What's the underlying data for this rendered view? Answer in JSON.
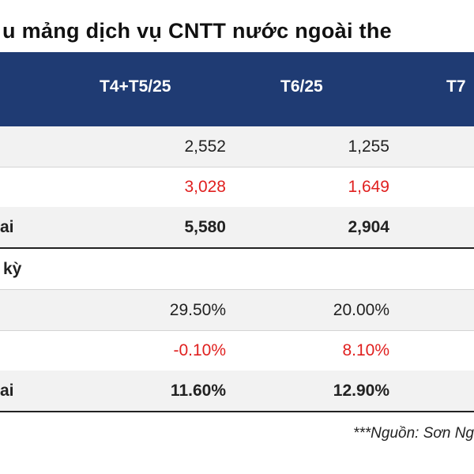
{
  "title": "u mảng dịch vụ CNTT nước ngoài the",
  "columns": [
    "T4+T5/25",
    "T6/25",
    "T7"
  ],
  "rows": [
    {
      "label": "",
      "v1": "2,552",
      "v2": "1,255",
      "style": "normal"
    },
    {
      "label": "",
      "v1": "3,028",
      "v2": "1,649",
      "style": "red"
    },
    {
      "label": "ai",
      "v1": "5,580",
      "v2": "2,904",
      "style": "bold"
    },
    {
      "label": "kỳ",
      "v1": "",
      "v2": "",
      "style": "section"
    },
    {
      "label": "",
      "v1": "29.50%",
      "v2": "20.00%",
      "style": "normal"
    },
    {
      "label": "",
      "v1": "-0.10%",
      "v2": "8.10%",
      "style": "red"
    },
    {
      "label": "ai",
      "v1": "11.60%",
      "v2": "12.90%",
      "style": "bold"
    }
  ],
  "source": "***Nguồn: Sơn Ng",
  "colors": {
    "header_bg": "#1f3b73",
    "red": "#e0201f",
    "shade": "#f2f2f2"
  }
}
